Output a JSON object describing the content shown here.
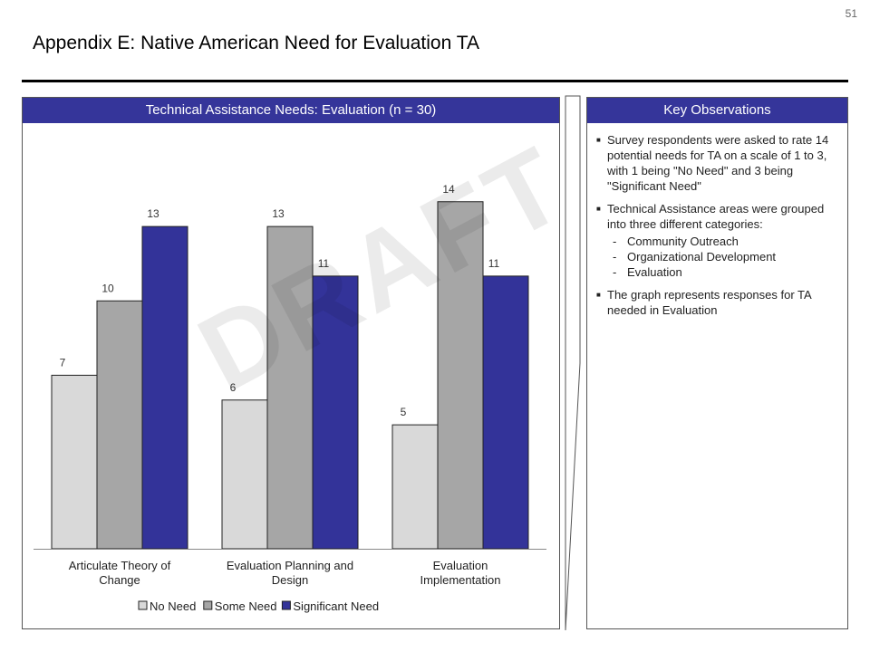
{
  "page": {
    "number": "51",
    "title": "Appendix E: Native American Need for Evaluation TA",
    "watermark": "DRAFT"
  },
  "chart_panel": {
    "header": "Technical Assistance Needs: Evaluation (n = 30)"
  },
  "observations": {
    "header": "Key Observations",
    "items": [
      {
        "text": "Survey respondents were asked to rate 14 potential needs for TA on a scale of 1 to 3, with 1 being \"No Need\" and 3 being \"Significant Need\"",
        "subitems": []
      },
      {
        "text": "Technical Assistance areas were grouped into three different categories:",
        "subitems": [
          "Community Outreach",
          "Organizational Development",
          "Evaluation"
        ]
      },
      {
        "text": "The graph represents responses for TA needed in Evaluation",
        "subitems": []
      }
    ]
  },
  "colors": {
    "header_bg": "#35359a",
    "no_need": "#d9d9d9",
    "some_need": "#a6a6a6",
    "significant_need": "#333399"
  },
  "chart_data": {
    "type": "bar",
    "title": "Technical Assistance Needs: Evaluation (n = 30)",
    "categories": [
      [
        "Articulate Theory of",
        "Change"
      ],
      [
        "Evaluation Planning and",
        "Design"
      ],
      [
        "Evaluation",
        "Implementation"
      ]
    ],
    "series": [
      {
        "name": "No Need",
        "color": "#d9d9d9",
        "values": [
          7,
          6,
          5
        ]
      },
      {
        "name": "Some Need",
        "color": "#a6a6a6",
        "values": [
          10,
          13,
          14
        ]
      },
      {
        "name": "Significant Need",
        "color": "#333399",
        "values": [
          13,
          11,
          11
        ]
      }
    ],
    "ylim": [
      0,
      16
    ],
    "grid": false,
    "legend": "bottom",
    "data_labels": true
  }
}
